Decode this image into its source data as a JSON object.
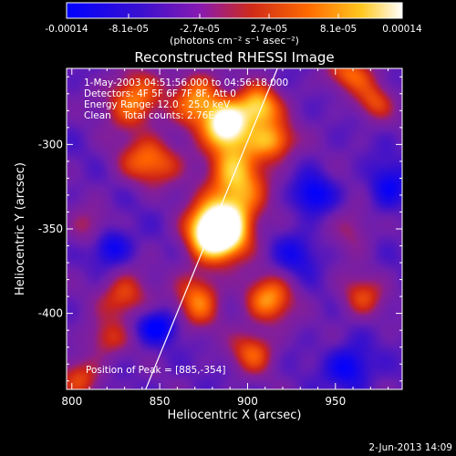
{
  "chart_data": {
    "type": "heatmap",
    "title": "Reconstructed RHESSI Image",
    "xlabel": "Heliocentric X (arcsec)",
    "ylabel": "Heliocentric Y (arcsec)",
    "xlim": [
      797,
      988
    ],
    "ylim": [
      -445,
      -255
    ],
    "x_ticks": [
      800,
      850,
      900,
      950
    ],
    "y_ticks": [
      -300,
      -350,
      -400
    ],
    "colorbar": {
      "min": -0.00014,
      "max": 0.00014,
      "tick_labels": [
        "-0.00014",
        "-8.1e-05",
        "-2.7e-05",
        "2.7e-05",
        "8.1e-05",
        "0.00014"
      ],
      "units": "(photons cm⁻² s⁻¹ asec⁻²)",
      "colors": [
        "#0000ff",
        "#6010c0",
        "#8a1ab0",
        "#cf2a1a",
        "#ff6a00",
        "#ffc820",
        "#ffffff"
      ]
    },
    "annotations": [
      "1-May-2003 04:51:56.000 to 04:56:18.000",
      "Detectors: 4F 5F 6F 7F 8F, Att 0",
      "Energy Range: 12.0 - 25.0 keV",
      "Clean    Total counts: 2.76E+03"
    ],
    "peak_label": "Position of Peak = [885,-354]",
    "peak": [
      885,
      -354
    ],
    "limb_line": [
      [
        842,
        -445
      ],
      [
        917,
        -255
      ]
    ],
    "sources": [
      {
        "x": 882,
        "y": -352,
        "sx": 11,
        "sy": 11,
        "amp": 1.0
      },
      {
        "x": 893,
        "y": -322,
        "sx": 12,
        "sy": 22,
        "amp": 0.55
      },
      {
        "x": 888,
        "y": -288,
        "sx": 8,
        "sy": 9,
        "amp": 0.6
      },
      {
        "x": 906,
        "y": -278,
        "sx": 9,
        "sy": 9,
        "amp": 0.55
      },
      {
        "x": 872,
        "y": -274,
        "sx": 10,
        "sy": 12,
        "amp": 0.45
      },
      {
        "x": 835,
        "y": -274,
        "sx": 11,
        "sy": 12,
        "amp": 0.45
      },
      {
        "x": 845,
        "y": -310,
        "sx": 13,
        "sy": 10,
        "amp": 0.4
      },
      {
        "x": 915,
        "y": -298,
        "sx": 9,
        "sy": 8,
        "amp": 0.45
      },
      {
        "x": 958,
        "y": -258,
        "sx": 10,
        "sy": 8,
        "amp": 0.35
      },
      {
        "x": 912,
        "y": -392,
        "sx": 10,
        "sy": 10,
        "amp": 0.45
      },
      {
        "x": 903,
        "y": -423,
        "sx": 9,
        "sy": 9,
        "amp": 0.35
      },
      {
        "x": 872,
        "y": -392,
        "sx": 9,
        "sy": 12,
        "amp": 0.4
      },
      {
        "x": 830,
        "y": -390,
        "sx": 10,
        "sy": 10,
        "amp": 0.35
      },
      {
        "x": 820,
        "y": -415,
        "sx": 9,
        "sy": 8,
        "amp": 0.25
      },
      {
        "x": 965,
        "y": -390,
        "sx": 9,
        "sy": 9,
        "amp": 0.3
      },
      {
        "x": 805,
        "y": -438,
        "sx": 9,
        "sy": 9,
        "amp": 0.3
      },
      {
        "x": 960,
        "y": -350,
        "sx": 8,
        "sy": 10,
        "amp": 0.2
      },
      {
        "x": 810,
        "y": -350,
        "sx": 9,
        "sy": 9,
        "amp": 0.2
      },
      {
        "x": 972,
        "y": -275,
        "sx": 8,
        "sy": 8,
        "amp": 0.3
      },
      {
        "x": 937,
        "y": -330,
        "sx": 8,
        "sy": 8,
        "amp": -0.3
      },
      {
        "x": 822,
        "y": -360,
        "sx": 8,
        "sy": 8,
        "amp": -0.3
      },
      {
        "x": 848,
        "y": -408,
        "sx": 9,
        "sy": 7,
        "amp": -0.3
      },
      {
        "x": 958,
        "y": -432,
        "sx": 9,
        "sy": 9,
        "amp": -0.3
      },
      {
        "x": 980,
        "y": -325,
        "sx": 8,
        "sy": 10,
        "amp": -0.25
      },
      {
        "x": 928,
        "y": -365,
        "sx": 9,
        "sy": 9,
        "amp": -0.2
      }
    ]
  },
  "footer_date": "2-Jun-2013 14:09"
}
